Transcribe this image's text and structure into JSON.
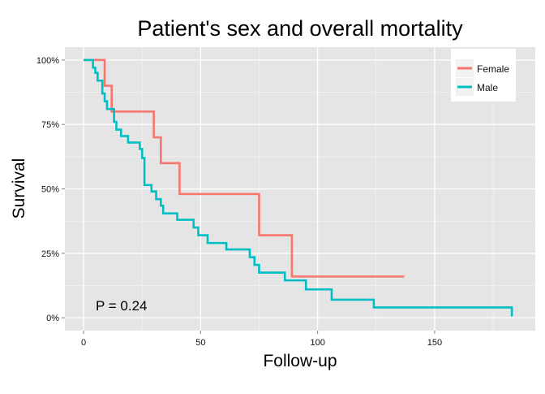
{
  "chart_data": {
    "type": "line",
    "step": true,
    "title": "Patient's sex and overall mortality",
    "xlabel": "Follow-up",
    "ylabel": "Survival",
    "xlim": [
      -8,
      193
    ],
    "ylim": [
      -0.05,
      1.05
    ],
    "xticks": [
      0,
      50,
      100,
      150
    ],
    "xtick_labels": [
      "0",
      "50",
      "100",
      "150"
    ],
    "yticks": [
      0,
      0.25,
      0.5,
      0.75,
      1
    ],
    "ytick_labels": [
      "0%",
      "25%",
      "50%",
      "75%",
      "100%"
    ],
    "grid": true,
    "legend_position": "top-right",
    "annotation": "P = 0.24",
    "series": [
      {
        "name": "Female",
        "color": "#f8766d",
        "points": [
          [
            0,
            1.0
          ],
          [
            9,
            1.0
          ],
          [
            9,
            0.9
          ],
          [
            12,
            0.9
          ],
          [
            12,
            0.8
          ],
          [
            30,
            0.8
          ],
          [
            30,
            0.7
          ],
          [
            33,
            0.7
          ],
          [
            33,
            0.6
          ],
          [
            41,
            0.6
          ],
          [
            41,
            0.48
          ],
          [
            75,
            0.48
          ],
          [
            75,
            0.32
          ],
          [
            89,
            0.32
          ],
          [
            89,
            0.16
          ],
          [
            137,
            0.16
          ]
        ]
      },
      {
        "name": "Male",
        "color": "#00bfc4",
        "points": [
          [
            0,
            1.0
          ],
          [
            4,
            1.0
          ],
          [
            4,
            0.97
          ],
          [
            5,
            0.97
          ],
          [
            5,
            0.95
          ],
          [
            6,
            0.95
          ],
          [
            6,
            0.92
          ],
          [
            8,
            0.92
          ],
          [
            8,
            0.87
          ],
          [
            9,
            0.87
          ],
          [
            9,
            0.84
          ],
          [
            10,
            0.84
          ],
          [
            10,
            0.81
          ],
          [
            13,
            0.81
          ],
          [
            13,
            0.76
          ],
          [
            14,
            0.76
          ],
          [
            14,
            0.73
          ],
          [
            16,
            0.73
          ],
          [
            16,
            0.705
          ],
          [
            19,
            0.705
          ],
          [
            19,
            0.68
          ],
          [
            24,
            0.68
          ],
          [
            24,
            0.655
          ],
          [
            25,
            0.655
          ],
          [
            25,
            0.62
          ],
          [
            26,
            0.62
          ],
          [
            26,
            0.515
          ],
          [
            29,
            0.515
          ],
          [
            29,
            0.49
          ],
          [
            31,
            0.49
          ],
          [
            31,
            0.46
          ],
          [
            33,
            0.46
          ],
          [
            33,
            0.435
          ],
          [
            34,
            0.435
          ],
          [
            34,
            0.405
          ],
          [
            40,
            0.405
          ],
          [
            40,
            0.38
          ],
          [
            47,
            0.38
          ],
          [
            47,
            0.35
          ],
          [
            49,
            0.35
          ],
          [
            49,
            0.32
          ],
          [
            53,
            0.32
          ],
          [
            53,
            0.29
          ],
          [
            61,
            0.29
          ],
          [
            61,
            0.265
          ],
          [
            71,
            0.265
          ],
          [
            71,
            0.235
          ],
          [
            73,
            0.235
          ],
          [
            73,
            0.205
          ],
          [
            75,
            0.205
          ],
          [
            75,
            0.175
          ],
          [
            86,
            0.175
          ],
          [
            86,
            0.145
          ],
          [
            95,
            0.145
          ],
          [
            95,
            0.11
          ],
          [
            106,
            0.11
          ],
          [
            106,
            0.07
          ],
          [
            124,
            0.07
          ],
          [
            124,
            0.04
          ],
          [
            183,
            0.04
          ],
          [
            183,
            0.005
          ]
        ]
      }
    ]
  },
  "legend": {
    "background": "#ffffff"
  },
  "colors": {
    "panel_background": "#e5e5e5",
    "grid_major": "#ffffff",
    "grid_minor": "#f2f2f2"
  }
}
